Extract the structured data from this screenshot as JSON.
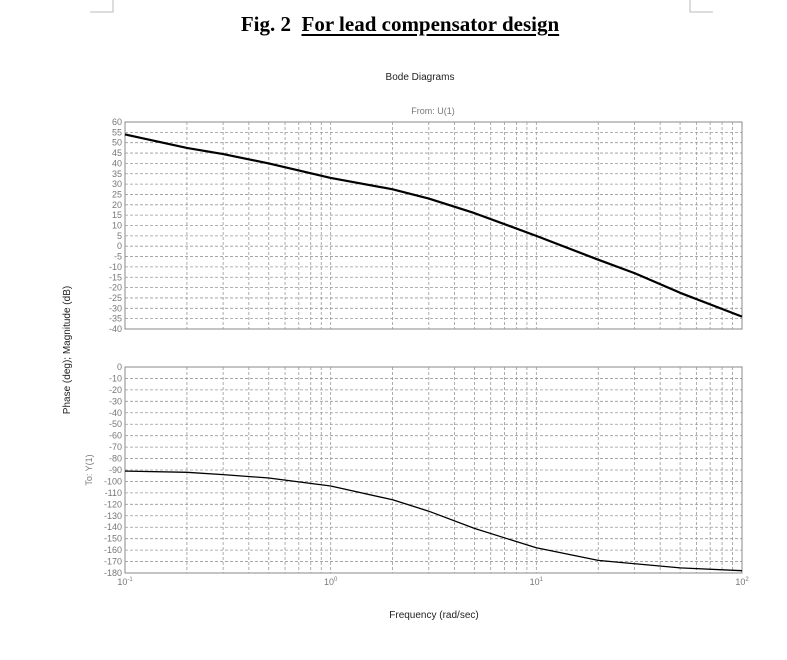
{
  "figure": {
    "prefix": "Fig. 2",
    "title": "For lead compensator design"
  },
  "chart_data": [
    {
      "type": "line",
      "title": "Bode Diagrams",
      "subtitle": "From: U(1)",
      "ylabel": "Phase (deg); Magnitude (dB)",
      "xscale": "log",
      "xlim": [
        0.1,
        100
      ],
      "ylim": [
        -40,
        60
      ],
      "yticks": [
        60,
        55,
        50,
        45,
        40,
        35,
        30,
        25,
        20,
        15,
        10,
        5,
        0,
        -5,
        -10,
        -15,
        -20,
        -25,
        -30,
        -35,
        -40
      ],
      "grid": true,
      "x": [
        0.1,
        0.2,
        0.3,
        0.5,
        1,
        2,
        3,
        5,
        10,
        20,
        30,
        50,
        100
      ],
      "y": [
        54,
        47.5,
        44.5,
        40,
        33,
        27.5,
        23,
        16,
        5,
        -6.5,
        -13,
        -22.5,
        -34
      ]
    },
    {
      "type": "line",
      "ylabel": "To: Y(1)",
      "xlabel": "Frequency (rad/sec)",
      "xscale": "log",
      "xlim": [
        0.1,
        100
      ],
      "xticks": [
        "10^-1",
        "10^0",
        "10^1",
        "10^2"
      ],
      "ylim": [
        -180,
        0
      ],
      "yticks": [
        0,
        -10,
        -20,
        -30,
        -40,
        -50,
        -60,
        -70,
        -80,
        -90,
        -100,
        -110,
        -120,
        -130,
        -140,
        -150,
        -160,
        -170,
        -180
      ],
      "grid": true,
      "x": [
        0.1,
        0.2,
        0.3,
        0.5,
        1,
        2,
        3,
        5,
        10,
        20,
        50,
        100
      ],
      "y": [
        -91,
        -92,
        -94,
        -97,
        -104,
        -116,
        -126,
        -141,
        -158,
        -169,
        -175.5,
        -178
      ]
    }
  ]
}
